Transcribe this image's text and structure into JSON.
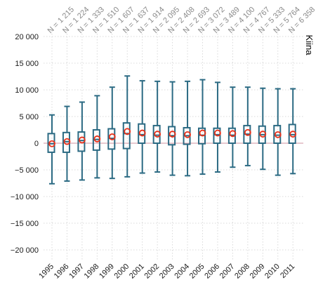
{
  "chart_data": {
    "type": "box",
    "title": "",
    "panel_label": "Kiina",
    "xlabel": "",
    "ylabel": "",
    "ylim": [
      -21000,
      21000
    ],
    "y_ticks": [
      20000,
      15000,
      10000,
      5000,
      0,
      -5000,
      -10000,
      -15000,
      -20000
    ],
    "y_tick_labels": [
      "20 000",
      "15 000",
      "10 000",
      "5 000",
      "0",
      "−5 000",
      "−10 000",
      "−15 000",
      "−20 000"
    ],
    "grid": true,
    "zero_line": true,
    "categories": [
      "1995",
      "1996",
      "1997",
      "1998",
      "1999",
      "2000",
      "2001",
      "2002",
      "2003",
      "2004",
      "2005",
      "2006",
      "2007",
      "2008",
      "2009",
      "2010",
      "2011"
    ],
    "n_labels": [
      "N = 1 215",
      "N = 1 224",
      "N = 1 333",
      "N = 1 510",
      "N = 1 607",
      "N = 1 637",
      "N = 1 914",
      "N = 2 095",
      "N = 2 408",
      "N = 2 693",
      "N = 3 072",
      "N = 3 489",
      "N = 4 100",
      "N = 4 767",
      "N = 5 333",
      "N = 5 764",
      "N = 6 358"
    ],
    "whisker_low": [
      -7600,
      -7100,
      -6900,
      -6500,
      -6600,
      -6300,
      -5600,
      -5400,
      -6000,
      -6100,
      -5800,
      -5400,
      -4500,
      -4200,
      -4900,
      -6000,
      -5700
    ],
    "q1": [
      -1700,
      -1700,
      -1500,
      -1300,
      -1100,
      -1000,
      0,
      0,
      -300,
      -200,
      -100,
      0,
      0,
      0,
      0,
      0,
      0
    ],
    "median": [
      -100,
      300,
      500,
      700,
      900,
      1800,
      1600,
      1500,
      1400,
      1400,
      1500,
      1600,
      1500,
      1700,
      1600,
      1500,
      1600
    ],
    "q3": [
      1800,
      2000,
      2100,
      2500,
      2700,
      3800,
      3600,
      3300,
      3100,
      2900,
      2800,
      2800,
      2800,
      3300,
      3200,
      3300,
      3500
    ],
    "whisker_high": [
      5300,
      6900,
      7700,
      8900,
      10500,
      12600,
      11700,
      11600,
      11500,
      11600,
      11900,
      11400,
      10500,
      10500,
      10300,
      10200,
      10200
    ],
    "mean": [
      -100,
      300,
      600,
      800,
      1200,
      2200,
      1900,
      1700,
      1700,
      1600,
      1900,
      1900,
      1800,
      2000,
      1700,
      1600,
      1700
    ],
    "colors": {
      "box": "#2b6a83",
      "mean_marker": "#e8311a",
      "grid": "#d9d9d9",
      "zero_line": "#d9a9b3",
      "text": "#1a1a1a",
      "n_label": "#8a8a8a"
    }
  }
}
